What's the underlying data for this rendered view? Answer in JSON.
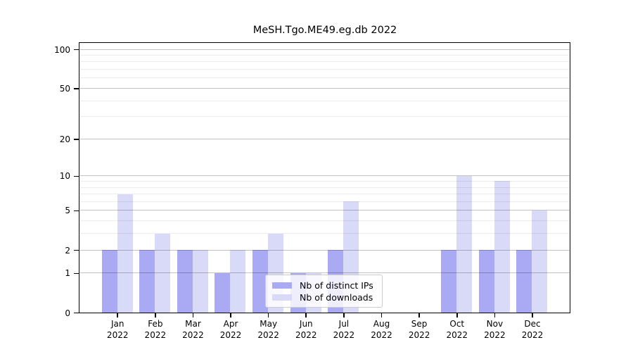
{
  "chart_data": {
    "type": "bar",
    "title": "MeSH.Tgo.ME49.eg.db 2022",
    "categories": [
      "Jan",
      "Feb",
      "Mar",
      "Apr",
      "May",
      "Jun",
      "Jul",
      "Aug",
      "Sep",
      "Oct",
      "Nov",
      "Dec"
    ],
    "year": "2022",
    "series": [
      {
        "name": "Nb of distinct IPs",
        "color": "#a9a9f4",
        "values": [
          2,
          2,
          2,
          1,
          2,
          1,
          2,
          0,
          0,
          2,
          2,
          2
        ]
      },
      {
        "name": "Nb of downloads",
        "color": "#d9d9f8",
        "values": [
          7,
          3,
          2,
          2,
          3,
          1,
          6,
          0,
          0,
          10,
          9,
          5
        ]
      }
    ],
    "yscale": "log1p",
    "ylim": [
      0,
      112
    ],
    "ytick_labels": [
      "0",
      "1",
      "2",
      "5",
      "10",
      "20",
      "50",
      "100"
    ],
    "yticks": [
      0,
      1,
      2,
      5,
      10,
      20,
      50,
      100
    ],
    "minor_yticks": [
      3,
      4,
      6,
      7,
      8,
      9,
      30,
      40,
      60,
      70,
      80,
      90
    ],
    "grid": "on",
    "legend_position": "lower center"
  }
}
